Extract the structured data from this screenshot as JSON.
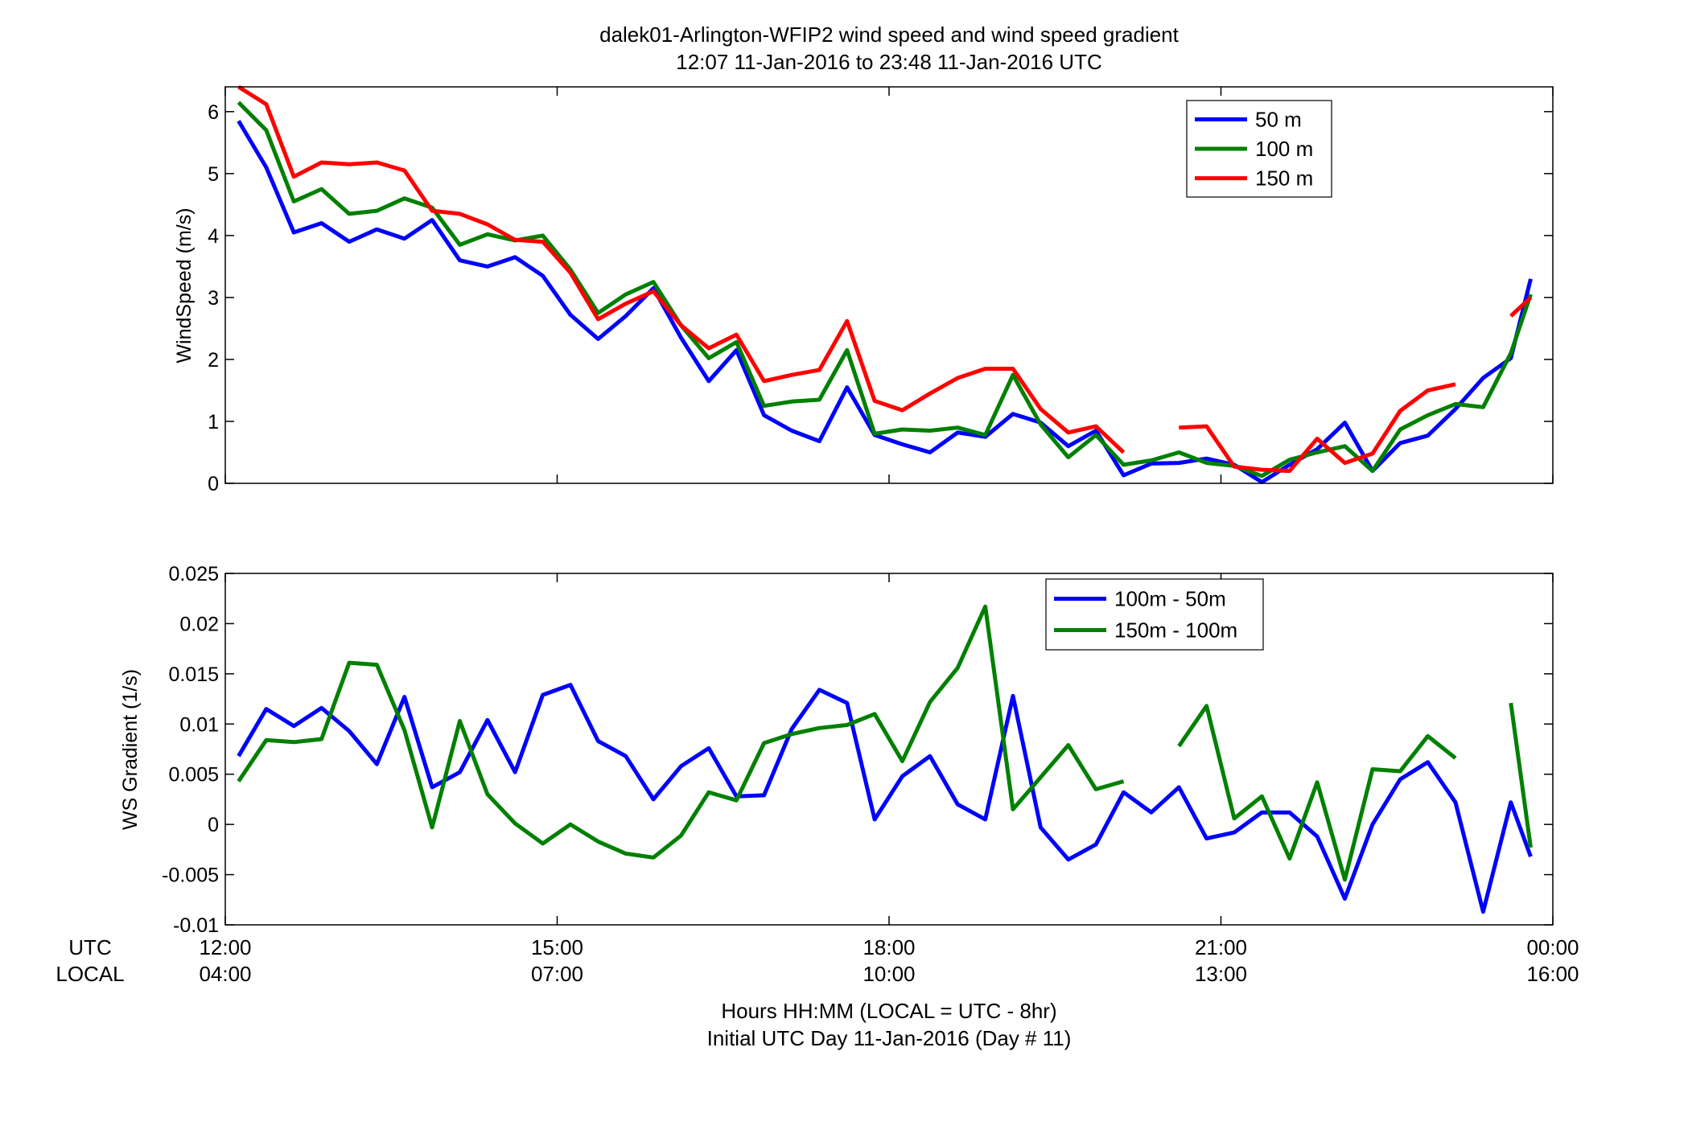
{
  "figure": {
    "title_line1": "dalek01-Arlington-WFIP2  wind speed and wind speed gradient",
    "title_line2": "12:07 11-Jan-2016 to 23:48 11-Jan-2016  UTC",
    "xaxis_row1_label": "UTC",
    "xaxis_row2_label": "LOCAL",
    "xlabel_line1": "Hours HH:MM  (LOCAL = UTC - 8hr)",
    "xlabel_line2": "Initial UTC Day 11-Jan-2016 (Day # 11)",
    "utc_ticks": [
      "12:00",
      "15:00",
      "18:00",
      "21:00",
      "00:00"
    ],
    "local_ticks": [
      "04:00",
      "07:00",
      "10:00",
      "13:00",
      "16:00"
    ],
    "xtick_hours": [
      12,
      15,
      18,
      21,
      24
    ]
  },
  "chart_data": [
    {
      "type": "line",
      "ylabel": "WindSpeed (m/s)",
      "xlim": [
        12,
        24
      ],
      "ylim": [
        0,
        6.4
      ],
      "yticks": [
        0,
        1,
        2,
        3,
        4,
        5,
        6
      ],
      "ytick_labels": [
        "0",
        "1",
        "2",
        "3",
        "4",
        "5",
        "6"
      ],
      "legend_position": "top-right",
      "x": [
        12.12,
        12.37,
        12.62,
        12.87,
        13.12,
        13.37,
        13.62,
        13.87,
        14.12,
        14.37,
        14.62,
        14.87,
        15.12,
        15.37,
        15.62,
        15.87,
        16.12,
        16.37,
        16.62,
        16.87,
        17.12,
        17.37,
        17.62,
        17.87,
        18.12,
        18.37,
        18.62,
        18.87,
        19.12,
        19.37,
        19.62,
        19.87,
        20.12,
        20.37,
        20.62,
        20.87,
        21.12,
        21.37,
        21.62,
        21.87,
        22.12,
        22.37,
        22.62,
        22.87,
        23.12,
        23.37,
        23.62,
        23.8
      ],
      "series": [
        {
          "name": "50 m",
          "color": "#0000ff",
          "values": [
            5.85,
            5.1,
            4.05,
            4.2,
            3.9,
            4.1,
            3.95,
            4.25,
            3.6,
            3.5,
            3.65,
            3.35,
            2.72,
            2.33,
            2.7,
            3.15,
            2.35,
            1.65,
            2.15,
            1.1,
            0.85,
            0.68,
            1.55,
            0.78,
            0.63,
            0.5,
            0.82,
            0.75,
            1.12,
            0.98,
            0.6,
            0.85,
            0.13,
            0.32,
            0.33,
            0.4,
            0.3,
            0.02,
            0.3,
            0.55,
            0.98,
            0.2,
            0.65,
            0.77,
            1.2,
            1.7,
            2.02,
            3.3
          ]
        },
        {
          "name": "100 m",
          "color": "#008000",
          "values": [
            6.15,
            5.7,
            4.55,
            4.75,
            4.35,
            4.4,
            4.6,
            4.45,
            3.85,
            4.02,
            3.92,
            4.0,
            3.45,
            2.75,
            3.05,
            3.25,
            2.55,
            2.02,
            2.28,
            1.25,
            1.32,
            1.35,
            2.15,
            0.8,
            0.87,
            0.85,
            0.9,
            0.78,
            1.75,
            0.95,
            0.42,
            0.78,
            0.3,
            0.37,
            0.5,
            0.33,
            0.28,
            0.12,
            0.38,
            0.5,
            0.6,
            0.2,
            0.87,
            1.1,
            1.28,
            1.23,
            2.1,
            3.05
          ]
        },
        {
          "name": "150 m",
          "color": "#ff0000",
          "values": [
            6.4,
            6.12,
            4.95,
            5.18,
            5.15,
            5.18,
            5.05,
            4.4,
            4.35,
            4.18,
            3.93,
            3.9,
            3.4,
            2.65,
            2.9,
            3.1,
            2.55,
            2.18,
            2.4,
            1.65,
            1.75,
            1.83,
            2.62,
            1.33,
            1.18,
            1.45,
            1.7,
            1.85,
            1.85,
            1.2,
            0.82,
            0.92,
            0.5,
            null,
            0.9,
            0.92,
            0.27,
            0.22,
            0.2,
            0.72,
            0.33,
            0.48,
            1.17,
            1.5,
            1.6,
            null,
            2.7,
            3.0
          ]
        }
      ]
    },
    {
      "type": "line",
      "ylabel": "WS Gradient (1/s)",
      "xlim": [
        12,
        24
      ],
      "ylim": [
        -0.01,
        0.025
      ],
      "yticks": [
        -0.01,
        -0.005,
        0,
        0.005,
        0.01,
        0.015,
        0.02,
        0.025
      ],
      "ytick_labels": [
        "-0.01",
        "-0.005",
        "0",
        "0.005",
        "0.01",
        "0.015",
        "0.02",
        "0.025"
      ],
      "legend_position": "top-right",
      "x": [
        12.12,
        12.37,
        12.62,
        12.87,
        13.12,
        13.37,
        13.62,
        13.87,
        14.12,
        14.37,
        14.62,
        14.87,
        15.12,
        15.37,
        15.62,
        15.87,
        16.12,
        16.37,
        16.62,
        16.87,
        17.12,
        17.37,
        17.62,
        17.87,
        18.12,
        18.37,
        18.62,
        18.87,
        19.12,
        19.37,
        19.62,
        19.87,
        20.12,
        20.37,
        20.62,
        20.87,
        21.12,
        21.37,
        21.62,
        21.87,
        22.12,
        22.37,
        22.62,
        22.87,
        23.12,
        23.37,
        23.62,
        23.8
      ],
      "series": [
        {
          "name": "100m - 50m",
          "color": "#0000ff",
          "values": [
            0.0068,
            0.0115,
            0.0098,
            0.0116,
            0.0093,
            0.006,
            0.0127,
            0.0037,
            0.0052,
            0.0104,
            0.0052,
            0.0129,
            0.0139,
            0.0083,
            0.0068,
            0.0025,
            0.0058,
            0.0076,
            0.0028,
            0.0029,
            0.0095,
            0.0134,
            0.0121,
            0.0005,
            0.0048,
            0.0068,
            0.002,
            0.0005,
            0.0128,
            -0.0003,
            -0.0035,
            -0.002,
            0.0032,
            0.0012,
            0.0037,
            -0.0014,
            -0.0008,
            0.0012,
            0.0012,
            -0.0012,
            -0.0074,
            0.0,
            0.0045,
            0.0062,
            0.0022,
            -0.0087,
            0.0022,
            -0.0032
          ]
        },
        {
          "name": "150m - 100m",
          "color": "#008000",
          "values": [
            0.0043,
            0.0084,
            0.0082,
            0.0085,
            0.0161,
            0.0159,
            0.0094,
            -0.0003,
            0.0103,
            0.003,
            0.0001,
            -0.0019,
            0.0,
            -0.0017,
            -0.0029,
            -0.0033,
            -0.0011,
            0.0032,
            0.0024,
            0.0081,
            0.009,
            0.0096,
            0.0099,
            0.011,
            0.0063,
            0.0122,
            0.0156,
            0.0217,
            0.0015,
            0.0047,
            0.0079,
            0.0035,
            0.0043,
            null,
            0.0078,
            0.0118,
            0.0006,
            0.0028,
            -0.0034,
            0.0042,
            -0.0055,
            0.0055,
            0.0053,
            0.0088,
            0.0066,
            null,
            0.0121,
            -0.0023
          ]
        }
      ]
    }
  ]
}
